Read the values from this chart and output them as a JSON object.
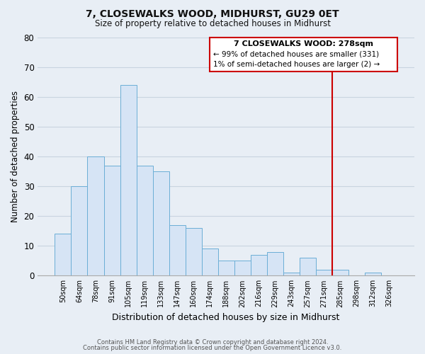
{
  "title": "7, CLOSEWALKS WOOD, MIDHURST, GU29 0ET",
  "subtitle": "Size of property relative to detached houses in Midhurst",
  "xlabel": "Distribution of detached houses by size in Midhurst",
  "ylabel": "Number of detached properties",
  "footer_lines": [
    "Contains HM Land Registry data © Crown copyright and database right 2024.",
    "Contains public sector information licensed under the Open Government Licence v3.0."
  ],
  "bin_labels": [
    "50sqm",
    "64sqm",
    "78sqm",
    "91sqm",
    "105sqm",
    "119sqm",
    "133sqm",
    "147sqm",
    "160sqm",
    "174sqm",
    "188sqm",
    "202sqm",
    "216sqm",
    "229sqm",
    "243sqm",
    "257sqm",
    "271sqm",
    "285sqm",
    "298sqm",
    "312sqm",
    "326sqm"
  ],
  "bar_heights": [
    14,
    30,
    40,
    37,
    64,
    37,
    35,
    17,
    16,
    9,
    5,
    5,
    7,
    8,
    1,
    6,
    2,
    2,
    0,
    1,
    0
  ],
  "bar_color": "#d6e4f5",
  "bar_edge_color": "#6baed6",
  "ylim": [
    0,
    80
  ],
  "yticks": [
    0,
    10,
    20,
    30,
    40,
    50,
    60,
    70,
    80
  ],
  "property_line_label": "7 CLOSEWALKS WOOD: 278sqm",
  "annotation_line1": "← 99% of detached houses are smaller (331)",
  "annotation_line2": "1% of semi-detached houses are larger (2) →",
  "box_color": "#ffffff",
  "box_edge_color": "#cc0000",
  "line_color": "#cc0000",
  "background_color": "#e8eef5",
  "grid_color": "#c8d4e0",
  "property_line_idx": 17
}
